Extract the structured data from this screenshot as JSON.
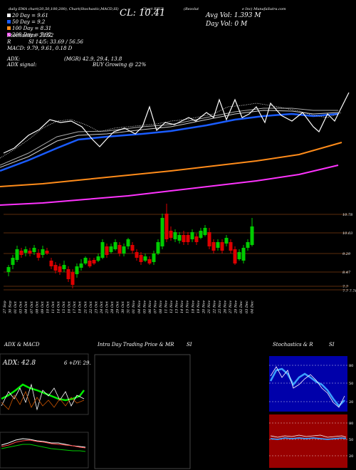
{
  "header": {
    "line1": "daily EMA chart(20,50,100,200), Chart(Stochastic,MACD,SI)",
    "ma_labels": [
      "20 Day = 9.61",
      "50 Day = 9.2",
      "100 Day = 8.31",
      "200 Day = 7.92"
    ],
    "stochastics": "Stochastics: 28.52",
    "r_label": "R",
    "si": "SI 14/5: 33.69 / 56.56",
    "macd": "MACD: 9.79, 9.61, 0.18  D",
    "adx": "ADX:",
    "adx_value": "(MGR) 42.9, 29.4, 13.8",
    "adx_signal": "ADX  signal:",
    "adx_signal_value": "BUY Growing @ 22%",
    "ticker": "Chart RZLT",
    "close": "CL: 10.41",
    "avg_vol": "Avg Vol: 1.393  M",
    "day_vol": "Day Vol: 0   M",
    "company_a": "(Rezolut",
    "company_b": "e Inc) MunafaSutra.com"
  },
  "price_axis": [
    "10.78",
    "10.03",
    "9.29",
    "8.47",
    "7.7",
    "7.7 7.78"
  ],
  "dates": [
    "27 Sep",
    "30 Sep",
    "01 Oct",
    "03 Oct",
    "04 Oct",
    "07 Oct",
    "08 Oct",
    "09 Oct",
    "10 Oct",
    "11 Oct",
    "14 Oct",
    "15 Oct",
    "16 Oct",
    "17 Oct",
    "18 Oct",
    "21 Oct",
    "22 Oct",
    "23 Oct",
    "24 Oct",
    "25 Oct",
    "28 Oct",
    "29 Oct",
    "30 Oct",
    "31 Oct",
    "01 Nov",
    "04 Nov",
    "05 Nov",
    "06 Nov",
    "07 Nov",
    "08 Nov",
    "11 Nov",
    "12 Nov",
    "13 Nov",
    "14 Nov",
    "15 Nov",
    "18 Nov",
    "19 Nov",
    "20 Nov",
    "21 Nov",
    "22 Nov",
    "25 Nov",
    "26 Nov",
    "27 Nov",
    "29 Nov",
    "02 Dec",
    "03 Dec",
    "04 Dec"
  ],
  "panels": {
    "adx_title": "ADX  & MACD",
    "adx_label": "ADX: 42.8",
    "adx_right": "6    +DY: 29.",
    "intra_title": "Intra  Day Trading Price  & MR",
    "intra_si": "SI",
    "stoch_title": "Stochastics & R",
    "stoch_si": "SI",
    "stoch_ticks": [
      "80",
      "50",
      "20"
    ],
    "si_ticks": [
      "80",
      "50",
      "20"
    ]
  },
  "colors": {
    "ema20": "#ffffff",
    "ema50": "#1a5cff",
    "ema100": "#ff8c1a",
    "ema200": "#ff33ff",
    "up": "#00cc00",
    "down": "#dd0000",
    "stoch_bg": "#0000aa",
    "si_bg": "#990000"
  }
}
